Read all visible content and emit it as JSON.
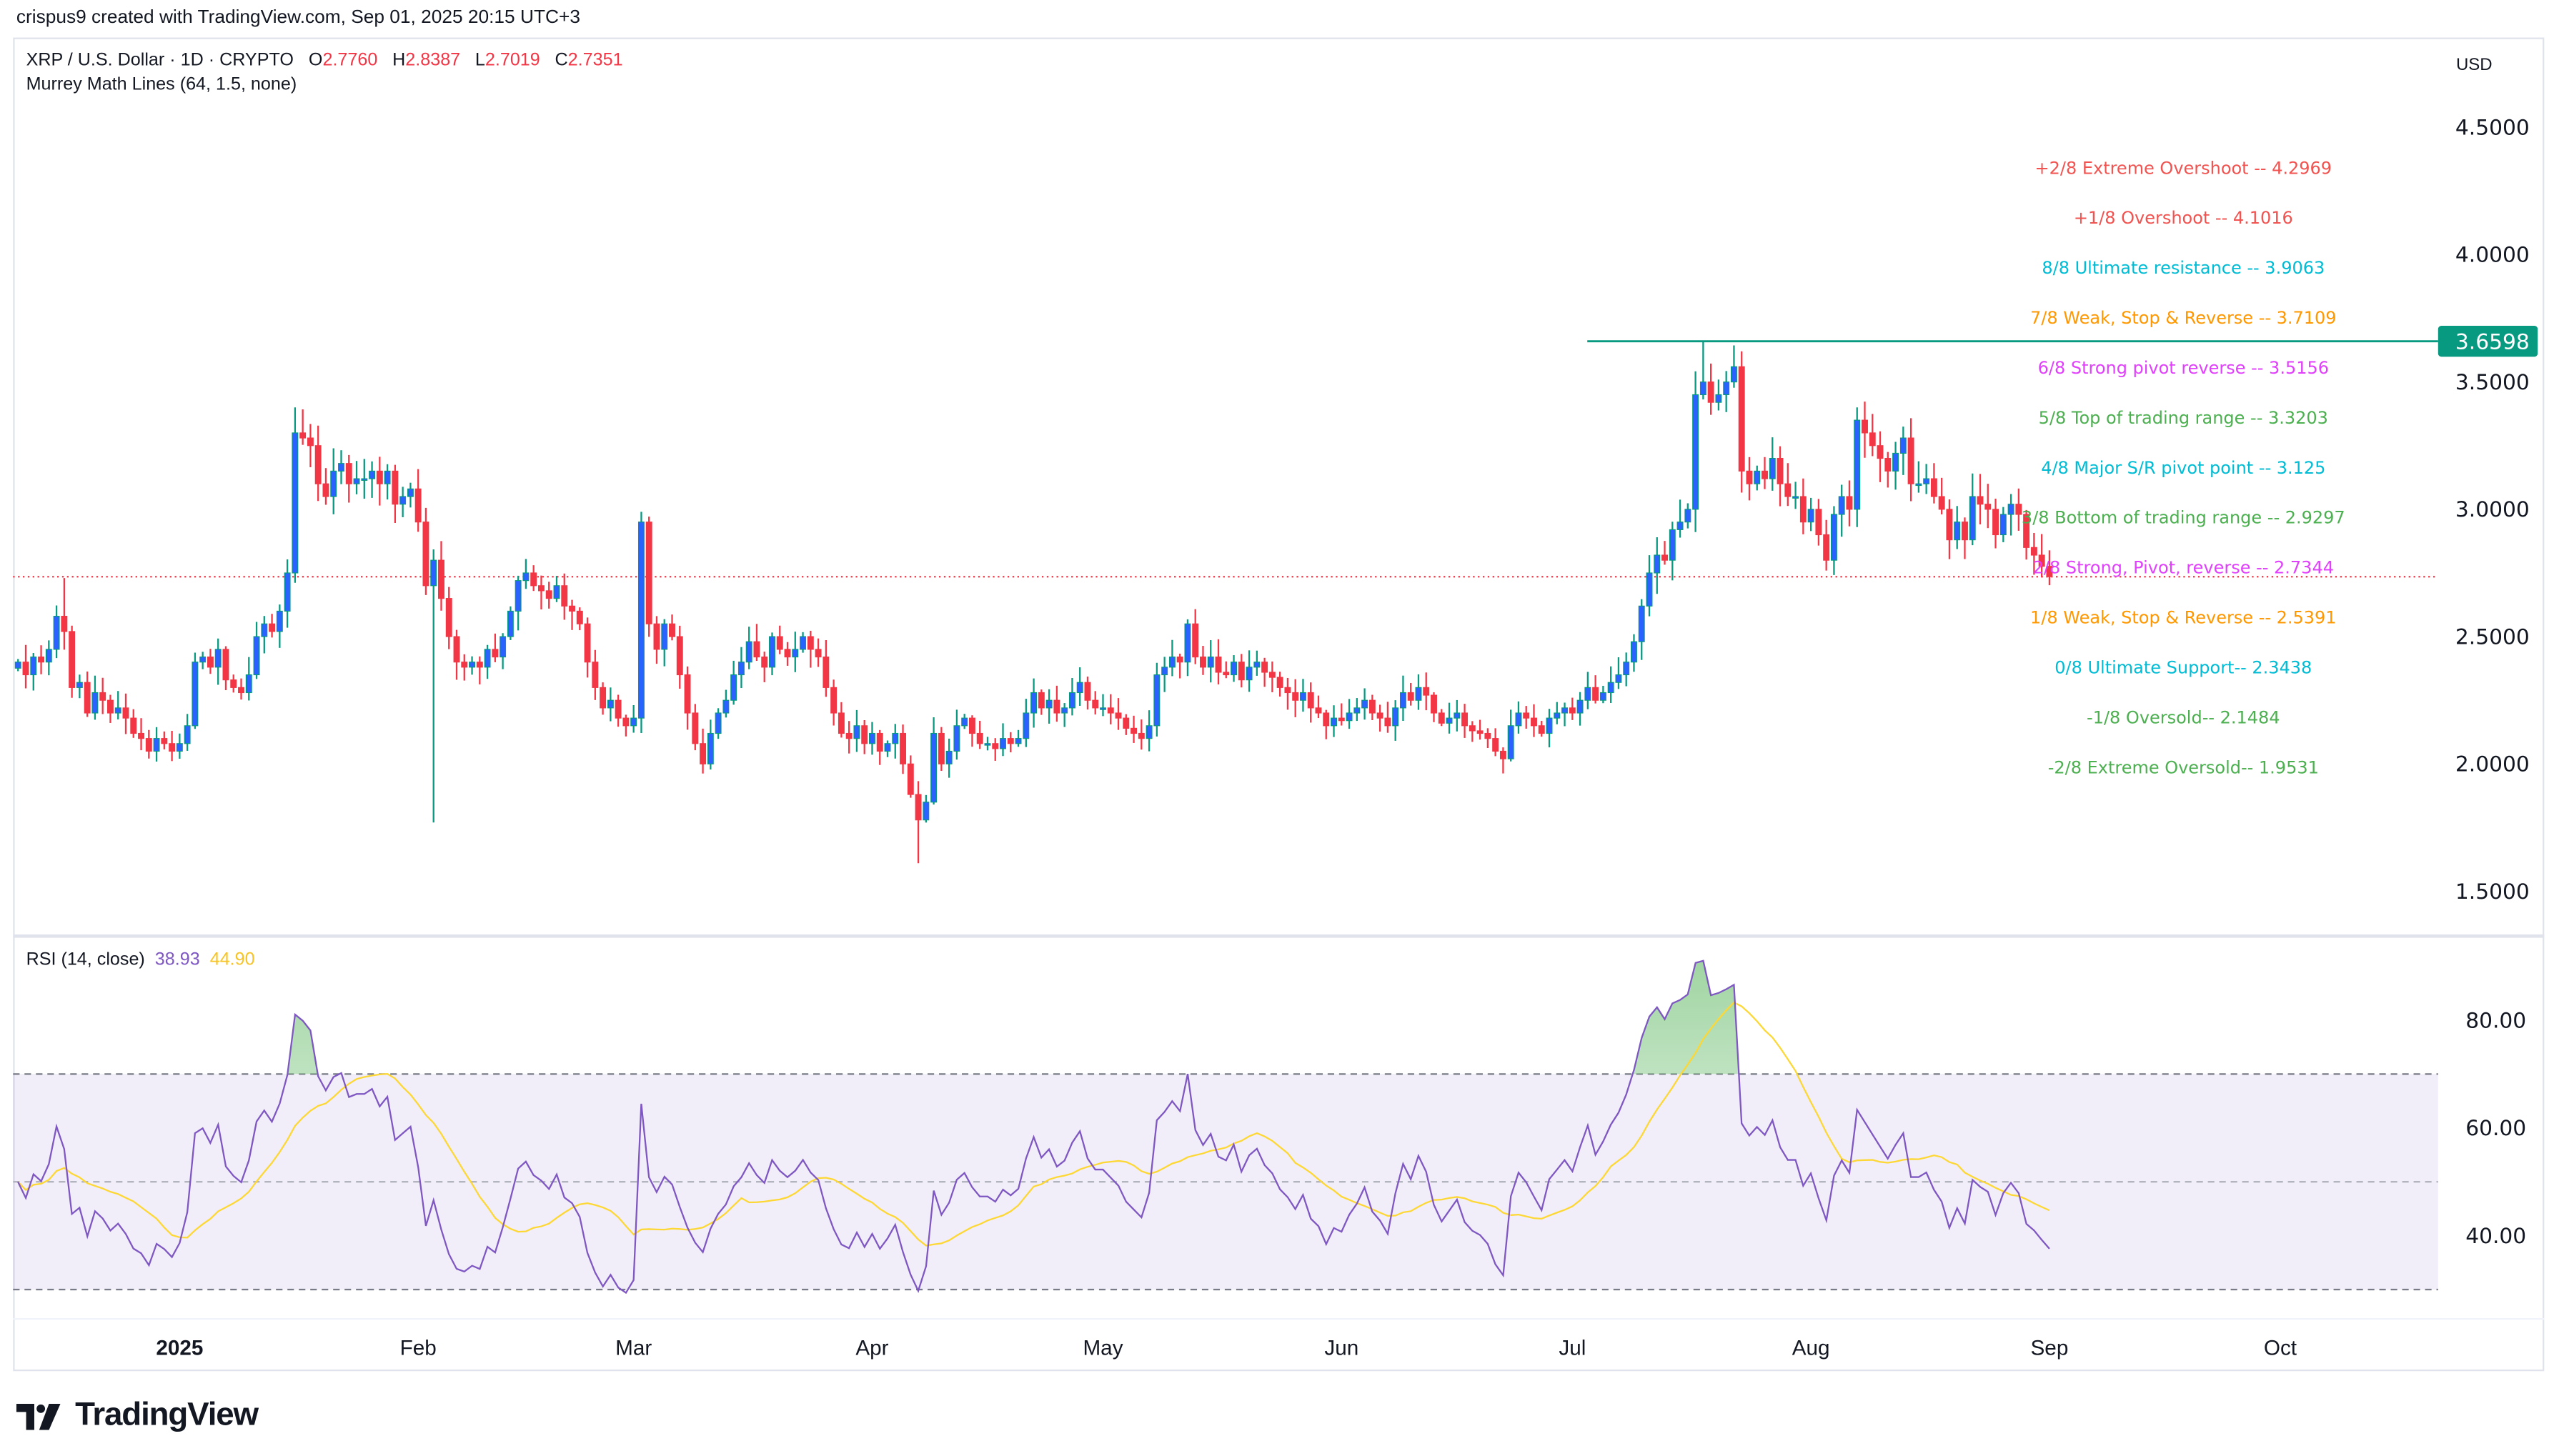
{
  "credit": "crispus9 created with TradingView.com, Sep 01, 2025 20:15 UTC+3",
  "symbol": {
    "title": "XRP / U.S. Dollar · 1D · CRYPTO",
    "open_label": "O",
    "open": "2.7760",
    "high_label": "H",
    "high": "2.8387",
    "low_label": "L",
    "low": "2.7019",
    "close_label": "C",
    "close": "2.7351"
  },
  "indicator_legend": "Murrey Math Lines (64, 1.5, none)",
  "currency": "USD",
  "rsi_legend": {
    "label": "RSI (14, close)",
    "rsi_value": "38.93",
    "ma_value": "44.90",
    "rsi_color": "#7e57c2",
    "ma_color": "#fdd835"
  },
  "logo": "TradingView",
  "colors": {
    "up_body": "#2962ff",
    "up_wick": "#089981",
    "down": "#f23645",
    "resistance_line": "#089981"
  },
  "resistance_label": "3.6598",
  "murrey_lines": [
    {
      "label": "+2/8 Extreme Overshoot --  4.2969",
      "color": "#f05350"
    },
    {
      "label": "+1/8 Overshoot --  4.1016",
      "color": "#f05350"
    },
    {
      "label": "8/8 Ultimate resistance --  3.9063",
      "color": "#00bcd4"
    },
    {
      "label": "7/8 Weak, Stop & Reverse --  3.7109",
      "color": "#ff9800"
    },
    {
      "label": "6/8 Strong pivot reverse --  3.5156",
      "color": "#e040fb"
    },
    {
      "label": "5/8 Top of trading range --  3.3203",
      "color": "#4caf50"
    },
    {
      "label": "4/8 Major S/R pivot point --  3.125",
      "color": "#00bcd4"
    },
    {
      "label": "3/8 Bottom of trading range --  2.9297",
      "color": "#4caf50"
    },
    {
      "label": "2/8 Strong, Pivot, reverse --  2.7344",
      "color": "#e040fb"
    },
    {
      "label": "1/8 Weak, Stop & Reverse --  2.5391",
      "color": "#ff9800"
    },
    {
      "label": "0/8 Ultimate Support--  2.3438",
      "color": "#00bcd4"
    },
    {
      "label": "-1/8 Oversold--  2.1484",
      "color": "#4caf50"
    },
    {
      "label": "-2/8 Extreme Oversold--  1.9531",
      "color": "#4caf50"
    }
  ],
  "chart_data": {
    "type": "candlestick",
    "title": "XRP / U.S. Dollar · 1D · CRYPTO",
    "start_date": "2024-12-11",
    "end_date": "2025-09-01",
    "closes": [
      2.4,
      2.35,
      2.42,
      2.4,
      2.45,
      2.58,
      2.52,
      2.3,
      2.32,
      2.2,
      2.28,
      2.25,
      2.2,
      2.22,
      2.18,
      2.12,
      2.1,
      2.05,
      2.1,
      2.08,
      2.05,
      2.08,
      2.15,
      2.4,
      2.42,
      2.38,
      2.45,
      2.33,
      2.3,
      2.28,
      2.35,
      2.5,
      2.55,
      2.52,
      2.6,
      2.75,
      3.3,
      3.28,
      3.25,
      3.1,
      3.05,
      3.15,
      3.18,
      3.1,
      3.12,
      3.12,
      3.15,
      3.1,
      3.15,
      3.02,
      3.05,
      3.08,
      2.95,
      2.7,
      2.8,
      2.65,
      2.5,
      2.4,
      2.38,
      2.4,
      2.38,
      2.45,
      2.42,
      2.5,
      2.6,
      2.72,
      2.75,
      2.7,
      2.68,
      2.65,
      2.7,
      2.62,
      2.6,
      2.55,
      2.4,
      2.3,
      2.22,
      2.25,
      2.18,
      2.15,
      2.18,
      2.95,
      2.55,
      2.45,
      2.55,
      2.5,
      2.35,
      2.2,
      2.08,
      2.0,
      2.12,
      2.2,
      2.25,
      2.35,
      2.4,
      2.48,
      2.42,
      2.38,
      2.5,
      2.45,
      2.42,
      2.45,
      2.5,
      2.45,
      2.42,
      2.3,
      2.2,
      2.12,
      2.1,
      2.15,
      2.08,
      2.12,
      2.05,
      2.08,
      2.12,
      2.0,
      1.88,
      1.78,
      1.85,
      2.12,
      2.0,
      2.05,
      2.15,
      2.18,
      2.12,
      2.08,
      2.08,
      2.06,
      2.1,
      2.08,
      2.1,
      2.2,
      2.28,
      2.22,
      2.25,
      2.2,
      2.22,
      2.28,
      2.32,
      2.25,
      2.22,
      2.22,
      2.2,
      2.18,
      2.14,
      2.12,
      2.1,
      2.15,
      2.35,
      2.38,
      2.42,
      2.4,
      2.55,
      2.42,
      2.38,
      2.42,
      2.36,
      2.35,
      2.4,
      2.33,
      2.38,
      2.4,
      2.36,
      2.34,
      2.3,
      2.28,
      2.25,
      2.28,
      2.22,
      2.2,
      2.15,
      2.18,
      2.17,
      2.2,
      2.22,
      2.25,
      2.2,
      2.18,
      2.15,
      2.22,
      2.28,
      2.25,
      2.3,
      2.27,
      2.2,
      2.16,
      2.18,
      2.2,
      2.15,
      2.13,
      2.12,
      2.1,
      2.05,
      2.02,
      2.15,
      2.2,
      2.18,
      2.15,
      2.12,
      2.18,
      2.2,
      2.22,
      2.2,
      2.25,
      2.3,
      2.25,
      2.28,
      2.32,
      2.35,
      2.4,
      2.48,
      2.62,
      2.75,
      2.82,
      2.8,
      2.92,
      2.95,
      3.0,
      3.45,
      3.5,
      3.42,
      3.45,
      3.5,
      3.56,
      3.15,
      3.1,
      3.15,
      3.12,
      3.2,
      3.1,
      3.05,
      3.05,
      2.95,
      3.0,
      2.9,
      2.8,
      2.98,
      3.05,
      3.0,
      3.35,
      3.3,
      3.25,
      3.2,
      3.15,
      3.22,
      3.28,
      3.1,
      3.1,
      3.12,
      3.05,
      3.0,
      2.88,
      2.95,
      2.88,
      3.05,
      3.02,
      3.0,
      2.9,
      2.98,
      3.02,
      2.98,
      2.85,
      2.82,
      2.776,
      2.7351
    ],
    "wick_extremes": [
      {
        "date": "2024-12-17",
        "high": 2.73
      },
      {
        "date": "2025-01-16",
        "high": 3.4
      },
      {
        "date": "2025-02-03",
        "low": 1.77
      },
      {
        "date": "2025-03-02",
        "high": 2.99
      },
      {
        "date": "2025-04-07",
        "low": 1.61
      },
      {
        "date": "2025-07-18",
        "high": 3.6598
      },
      {
        "date": "2025-09-01",
        "high": 2.8387,
        "low": 2.7019
      }
    ],
    "y_ticks": [
      "4.5000",
      "4.0000",
      "3.5000",
      "3.0000",
      "2.5000",
      "2.0000",
      "1.5000"
    ],
    "ylim": [
      1.5,
      4.5
    ],
    "x_ticks": [
      "2025",
      "Feb",
      "Mar",
      "Apr",
      "May",
      "Jun",
      "Jul",
      "Aug",
      "Sep",
      "Oct"
    ],
    "current_price": 2.7351,
    "rsi": {
      "period": 14,
      "ma_period": 14,
      "ticks": [
        "80.00",
        "60.00",
        "40.00"
      ],
      "upper_band": 70,
      "middle_band": 50,
      "lower_band": 30,
      "last": 38.93,
      "ma_last": 44.9
    }
  }
}
